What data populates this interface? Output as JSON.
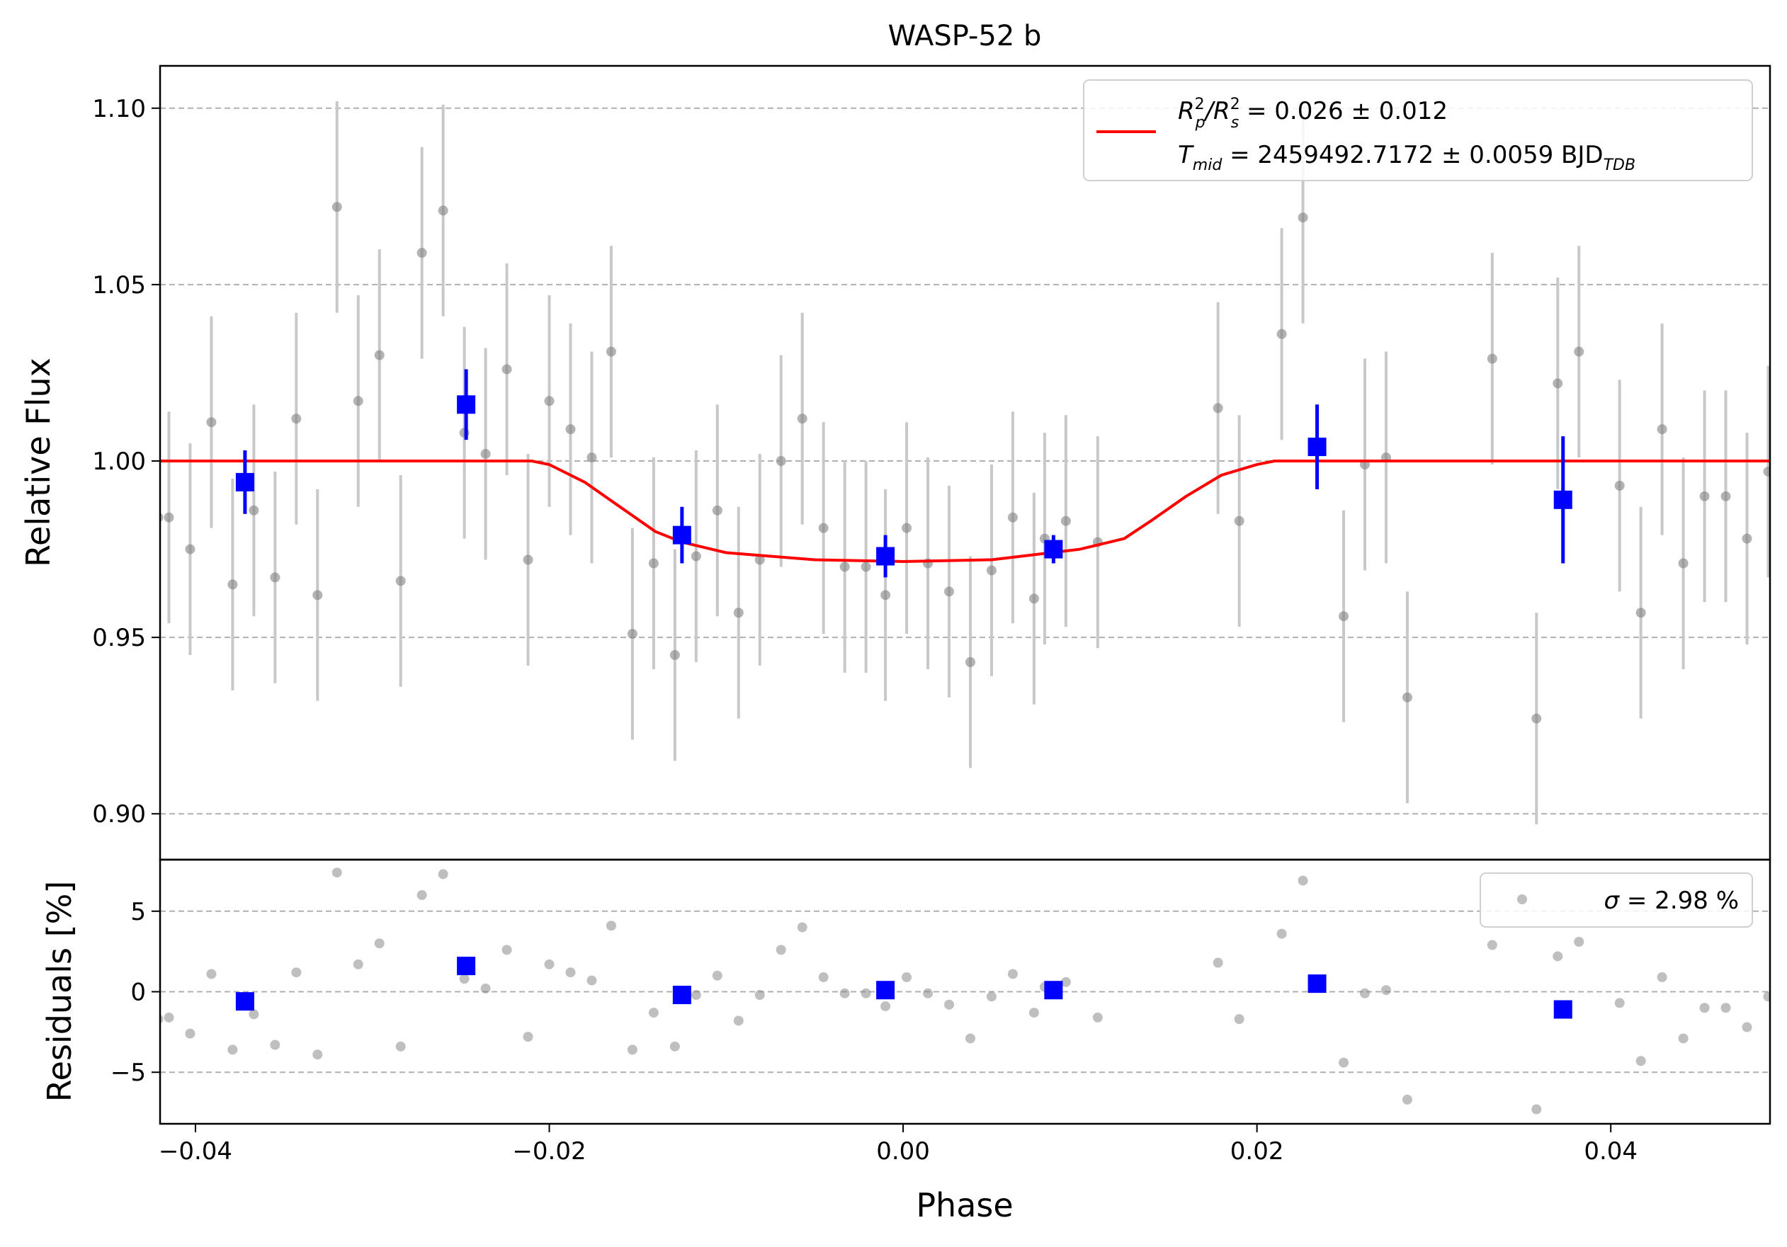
{
  "chart_data": [
    {
      "type": "scatter",
      "title": "WASP-52 b",
      "xlabel": "Phase",
      "ylabel": "Relative Flux",
      "xlim": [
        -0.042,
        0.049
      ],
      "ylim": [
        0.887,
        1.112
      ],
      "x_ticks": [
        -0.04,
        -0.02,
        0.0,
        0.02,
        0.04
      ],
      "x_tick_labels": [
        "−0.04",
        "−0.02",
        "0.00",
        "0.02",
        "0.04"
      ],
      "y_ticks": [
        0.9,
        0.95,
        1.0,
        1.05,
        1.1
      ],
      "y_tick_labels": [
        "0.90",
        "0.95",
        "1.00",
        "1.05",
        "1.10"
      ],
      "grid": "horizontal dashed",
      "colors": {
        "data": "#808080",
        "errorbar": "#c8c8c8",
        "binned": "#0000ff",
        "model": "#ff0000"
      },
      "legend": {
        "position": "top-right",
        "line1": {
          "main": "R",
          "sup1": "2",
          "sub1": "p",
          "mid": "/R",
          "sup2": "2",
          "sub2": "s",
          "rest": " = 0.026 ± 0.012"
        },
        "line2": {
          "main": "T",
          "sub1": "mid",
          "rest": " = 2459492.7172 ± 0.0059 BJD",
          "sub2": "TDB"
        }
      },
      "series": [
        {
          "type": "errorbar",
          "x": [
            -0.0421,
            -0.0415,
            -0.0403,
            -0.0391,
            -0.0379,
            -0.0367,
            -0.0355,
            -0.0343,
            -0.0331,
            -0.032,
            -0.0308,
            -0.0296,
            -0.0284,
            -0.0272,
            -0.026,
            -0.0248,
            -0.0236,
            -0.0224,
            -0.0212,
            -0.02,
            -0.0188,
            -0.0176,
            -0.0165,
            -0.0153,
            -0.0141,
            -0.0129,
            -0.0117,
            -0.0105,
            -0.0093,
            -0.0081,
            -0.0069,
            -0.0057,
            -0.0045,
            -0.0033,
            -0.0021,
            -0.001,
            0.0002,
            0.0014,
            0.0026,
            0.0038,
            0.005,
            0.0062,
            0.0074,
            0.008,
            0.0092,
            0.011,
            0.0178,
            0.019,
            0.0214,
            0.0226,
            0.0249,
            0.0261,
            0.0273,
            0.0285,
            0.0333,
            0.0358,
            0.037,
            0.0382,
            0.0405,
            0.0417,
            0.0429,
            0.0441,
            0.0453,
            0.0465,
            0.0477,
            0.0489,
            0.0493
          ],
          "y": [
            0.984,
            0.984,
            0.975,
            1.011,
            0.965,
            0.986,
            0.967,
            1.012,
            0.962,
            1.072,
            1.017,
            1.03,
            0.966,
            1.059,
            1.071,
            1.008,
            1.002,
            1.026,
            0.972,
            1.017,
            1.009,
            1.001,
            1.031,
            0.951,
            0.971,
            0.945,
            0.973,
            0.986,
            0.957,
            0.972,
            1.0,
            1.012,
            0.981,
            0.97,
            0.97,
            0.962,
            0.981,
            0.971,
            0.963,
            0.943,
            0.969,
            0.984,
            0.961,
            0.978,
            0.983,
            0.977,
            1.015,
            0.983,
            1.036,
            1.069,
            0.956,
            0.999,
            1.001,
            0.933,
            1.029,
            0.927,
            1.022,
            1.031,
            0.993,
            0.957,
            1.009,
            0.971,
            0.99,
            0.99,
            0.978,
            0.997,
            0.997
          ],
          "yerr": 0.03
        },
        {
          "type": "binned",
          "x": [
            -0.0372,
            -0.0247,
            -0.0125,
            -0.001,
            0.0085,
            0.0234,
            0.0373
          ],
          "y": [
            0.994,
            1.016,
            0.979,
            0.973,
            0.975,
            1.004,
            0.989
          ],
          "yerr": [
            0.009,
            0.01,
            0.008,
            0.006,
            0.004,
            0.012,
            0.018
          ]
        },
        {
          "type": "model",
          "x": [
            -0.042,
            -0.021,
            -0.02,
            -0.018,
            -0.016,
            -0.014,
            -0.0125,
            -0.01,
            -0.005,
            0.0,
            0.005,
            0.01,
            0.0125,
            0.014,
            0.016,
            0.018,
            0.02,
            0.021,
            0.049
          ],
          "y": [
            1.0,
            1.0,
            0.999,
            0.994,
            0.987,
            0.98,
            0.977,
            0.974,
            0.972,
            0.9715,
            0.972,
            0.975,
            0.978,
            0.983,
            0.99,
            0.996,
            0.999,
            1.0,
            1.0
          ]
        }
      ]
    },
    {
      "type": "scatter",
      "xlabel": "Phase",
      "ylabel": "Residuals [%]",
      "xlim": [
        -0.042,
        0.049
      ],
      "ylim": [
        -8.2,
        8.2
      ],
      "y_ticks": [
        -5,
        0,
        5
      ],
      "y_tick_labels": [
        "−5",
        "0",
        "5"
      ],
      "grid": "horizontal dashed",
      "legend": {
        "position": "top-right",
        "sigma": "σ",
        "rest": " = 2.98 %"
      },
      "series": [
        {
          "type": "residuals",
          "x": [
            -0.0421,
            -0.0415,
            -0.0403,
            -0.0391,
            -0.0379,
            -0.0367,
            -0.0355,
            -0.0343,
            -0.0331,
            -0.032,
            -0.0308,
            -0.0296,
            -0.0284,
            -0.0272,
            -0.026,
            -0.0248,
            -0.0236,
            -0.0224,
            -0.0212,
            -0.02,
            -0.0188,
            -0.0176,
            -0.0165,
            -0.0153,
            -0.0141,
            -0.0129,
            -0.0117,
            -0.0105,
            -0.0093,
            -0.0081,
            -0.0069,
            -0.0057,
            -0.0045,
            -0.0033,
            -0.0021,
            -0.001,
            0.0002,
            0.0014,
            0.0026,
            0.0038,
            0.005,
            0.0062,
            0.0074,
            0.008,
            0.0092,
            0.011,
            0.0178,
            0.019,
            0.0214,
            0.0226,
            0.0249,
            0.0261,
            0.0273,
            0.0285,
            0.0333,
            0.0358,
            0.037,
            0.0382,
            0.0405,
            0.0417,
            0.0429,
            0.0441,
            0.0453,
            0.0465,
            0.0477,
            0.0489,
            0.0493
          ],
          "y": [
            -1.7,
            -1.6,
            -2.6,
            1.1,
            -3.6,
            -1.4,
            -3.3,
            1.2,
            -3.9,
            7.4,
            1.7,
            3.0,
            -3.4,
            6.0,
            7.3,
            0.8,
            0.2,
            2.6,
            -2.8,
            1.7,
            1.2,
            0.7,
            4.1,
            -3.6,
            -1.3,
            -3.4,
            -0.2,
            1.0,
            -1.8,
            -0.2,
            2.6,
            4.0,
            0.9,
            -0.1,
            -0.1,
            -0.9,
            0.9,
            -0.1,
            -0.8,
            -2.9,
            -0.3,
            1.1,
            -1.3,
            0.3,
            0.6,
            -1.6,
            1.8,
            -1.7,
            3.6,
            6.9,
            -4.4,
            -0.1,
            0.1,
            -6.7,
            2.9,
            -7.3,
            2.2,
            3.1,
            -0.7,
            -4.3,
            0.9,
            -2.9,
            -1.0,
            -1.0,
            -2.2,
            -0.3,
            -0.3
          ]
        },
        {
          "type": "binned",
          "x": [
            -0.0372,
            -0.0247,
            -0.0125,
            -0.001,
            0.0085,
            0.0234,
            0.0373
          ],
          "y": [
            -0.6,
            1.6,
            -0.2,
            0.1,
            0.1,
            0.5,
            -1.1
          ]
        }
      ]
    }
  ]
}
